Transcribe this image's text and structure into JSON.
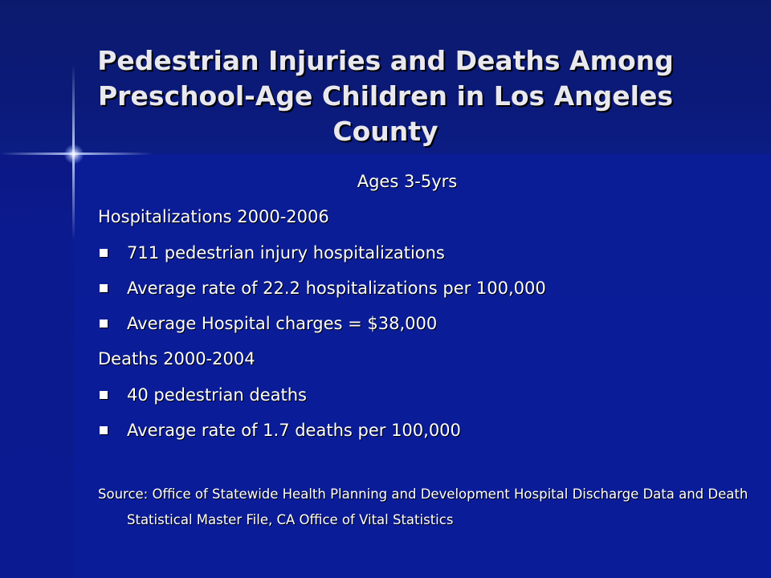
{
  "slide": {
    "title": "Pedestrian Injuries and Deaths Among Preschool-Age Children in Los Angeles County",
    "subtitle": "Ages 3-5yrs",
    "sections": [
      {
        "heading": "Hospitalizations 2000-2006",
        "bullets": [
          "711 pedestrian injury hospitalizations",
          "Average rate of 22.2 hospitalizations per 100,000",
          "Average Hospital charges = $38,000"
        ]
      },
      {
        "heading": "Deaths 2000-2004",
        "bullets": [
          "40 pedestrian deaths",
          "Average rate of 1.7 deaths per 100,000"
        ]
      }
    ],
    "source": "Source: Office of Statewide Health Planning and Development Hospital Discharge Data and Death Statistical Master File, CA Office of Vital Statistics"
  }
}
